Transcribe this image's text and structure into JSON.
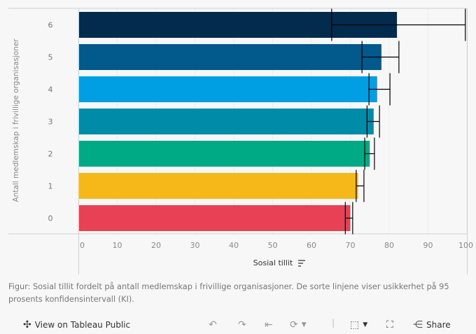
{
  "chart_data": {
    "type": "bar",
    "orientation": "horizontal",
    "categories": [
      "6",
      "5",
      "4",
      "3",
      "2",
      "1",
      "0"
    ],
    "values": [
      82,
      78,
      76.9,
      76,
      75,
      72,
      70
    ],
    "ci_low": [
      65.2,
      73,
      74.8,
      74.3,
      73.7,
      71.5,
      68.7
    ],
    "ci_high": [
      99.6,
      82.5,
      80.2,
      77.5,
      76.2,
      73.5,
      70.6
    ],
    "colors": [
      "#022b4e",
      "#02598c",
      "#009fe3",
      "#008ba8",
      "#00aa84",
      "#f6b818",
      "#e84055"
    ],
    "xlabel": "Sosial tillit",
    "ylabel": "Antall medlemskap i frivillige organisasjoner",
    "xlim": [
      0,
      102
    ],
    "xticks": [
      0,
      10,
      20,
      30,
      40,
      50,
      60,
      70,
      80,
      90,
      100
    ],
    "grid": true
  },
  "caption": "Figur: Sosial tillit fordelt på antall medlemskap i frivillige organisasjoner. De sorte linjene viser usikkerhet på 95 prosents konfidensintervall (KI).",
  "toolbar": {
    "view_label": "View on Tableau Public",
    "share_label": "Share"
  }
}
